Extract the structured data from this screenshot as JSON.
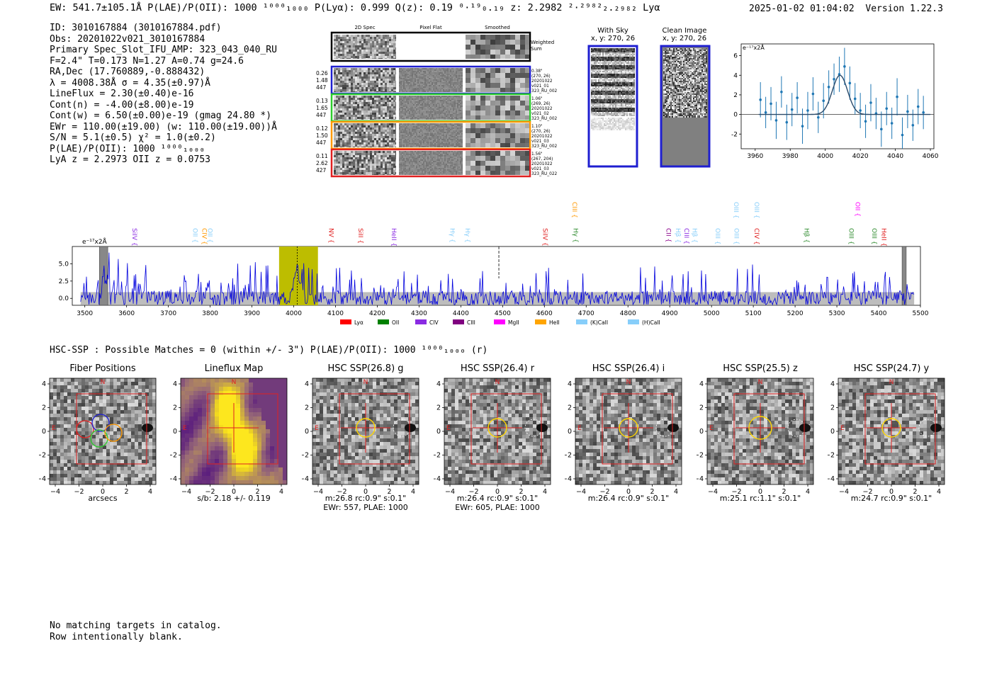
{
  "header": {
    "title_line": "EW: 541.7±105.1Å  P(LAE)/P(OII): 1000 ¹⁰⁰⁰₁₀₀₀  P(Lyα): 0.999  Q(z): 0.19 ⁰·¹⁹₀.₁₉  z: 2.2982 ²·²⁹⁸²₂.₂₉₈₂ Lyα",
    "timestamp": "2025-01-02 01:04:02",
    "version": "Version 1.22.3"
  },
  "info": {
    "lines": [
      "ID: 3010167884 (3010167884.pdf)",
      "Obs: 20201022v021_3010167884",
      "Primary Spec_Slot_IFU_AMP: 323_043_040_RU",
      "F=2.4\"  T=0.173  N=1.27  A=0.74  g=24.6",
      "RA,Dec (17.760889,-0.888432)",
      "λ = 4008.38Å  σ = 4.35(±0.97)Å",
      "LineFlux = 2.30(±0.40)e-16",
      "Cont(n) = -4.00(±8.00)e-19",
      "Cont(w) = 6.50(±0.00)e-19 (gmag 24.80 *)",
      "EWr = 110.00(±19.00) (w: 110.00(±19.00))Å",
      "S/N = 5.1(±0.5)  χ² = 1.0(±0.2)",
      "P(LAE)/P(OII): 1000 ¹⁰⁰⁰₁₀₀₀",
      "LyA z = 2.2973  OII z = 0.0753"
    ]
  },
  "fiber_strips": {
    "col_headers": [
      "2D Spec",
      "Pixel Flat",
      "Smoothed"
    ],
    "weighted_sum_label": "Weighted Sum",
    "rows": [
      {
        "left": [
          "0.26",
          "1.48",
          "447"
        ],
        "right": [
          "0.38\"",
          "(270, 26)",
          "20201022",
          "v021_01",
          "323_RU_002"
        ],
        "color": "#1f1fd0"
      },
      {
        "left": [
          "0.13",
          "1.65",
          "447"
        ],
        "right": [
          "1.06\"",
          "(269, 26)",
          "20201022",
          "v021_02",
          "323_RU_002"
        ],
        "color": "#2ecc2e"
      },
      {
        "left": [
          "0.12",
          "1.50",
          "447"
        ],
        "right": [
          "1.10\"",
          "(270, 26)",
          "20201022",
          "v021_03",
          "323_RU_002"
        ],
        "color": "#ff9900"
      },
      {
        "left": [
          "0.11",
          "2.62",
          "427"
        ],
        "right": [
          "1.56\"",
          "(267, 204)",
          "20201022",
          "v021_03",
          "323_RU_022"
        ],
        "color": "#e02020"
      }
    ]
  },
  "sky_panels": {
    "with_sky": {
      "title": "With Sky",
      "coords": "x, y: 270, 26"
    },
    "clean": {
      "title": "Clean Image",
      "coords": "x, y: 270, 26"
    }
  },
  "zoom_fit": {
    "unit_label": "e⁻¹⁷x2Å",
    "chart_data": {
      "type": "scatter",
      "x": [
        3963,
        3966,
        3969,
        3972,
        3975,
        3978,
        3981,
        3984,
        3987,
        3990,
        3993,
        3996,
        3999,
        4002,
        4005,
        4008,
        4011,
        4014,
        4017,
        4020,
        4023,
        4026,
        4029,
        4032,
        4035,
        4038,
        4041,
        4044,
        4047,
        4050,
        4053,
        4056
      ],
      "y": [
        1.5,
        0.2,
        1.1,
        -0.6,
        2.3,
        -0.8,
        0.5,
        1.7,
        -1.2,
        0.4,
        2.1,
        -0.3,
        1.4,
        2.8,
        3.6,
        4.1,
        4.9,
        3.2,
        1.6,
        0.4,
        -0.7,
        1.2,
        0.1,
        -1.5,
        0.6,
        -0.9,
        1.8,
        -2.1,
        0.3,
        -1.1,
        0.8,
        0.2
      ],
      "yerr": [
        1.8,
        1.6,
        1.7,
        1.9,
        1.6,
        1.8,
        1.7,
        1.6,
        1.8,
        1.9,
        1.7,
        1.6,
        1.8,
        1.7,
        1.6,
        1.8,
        1.9,
        1.7,
        1.6,
        1.8,
        1.7,
        1.9,
        1.6,
        1.8,
        1.7,
        1.6,
        1.9,
        1.8,
        1.7,
        1.6,
        1.8,
        1.7
      ],
      "fit": {
        "center": 4008.38,
        "sigma": 4.35,
        "amplitude": 4.0
      },
      "xlim": [
        3952,
        4062
      ],
      "ylim": [
        -3.5,
        7.2
      ],
      "xticks": [
        3960,
        3980,
        4000,
        4020,
        4040,
        4060
      ],
      "yticks": [
        -2,
        0,
        2,
        4,
        6
      ]
    }
  },
  "full_spectrum": {
    "unit_label": "e⁻¹⁷x2Å",
    "chart_data": {
      "type": "line",
      "xlim": [
        3470,
        5500
      ],
      "ylim": [
        -1.0,
        7.5
      ],
      "xticks": [
        3500,
        3600,
        3700,
        3800,
        3900,
        4000,
        4100,
        4200,
        4300,
        4400,
        4500,
        4600,
        4700,
        4800,
        4900,
        5000,
        5100,
        5200,
        5300,
        5400,
        5500
      ],
      "yticks": [
        0.0,
        2.5,
        5.0
      ],
      "highlight_range": [
        3965,
        4058
      ],
      "line_center": 4008.38,
      "reference_line": 4491,
      "masked_ranges": [
        [
          3535,
          3555
        ],
        [
          5456,
          5466
        ]
      ],
      "noise_level": 0.9,
      "lines": [
        {
          "name": "SiIV",
          "wave": 3619,
          "color": "#8a2be2",
          "row": 1
        },
        {
          "name": "OII",
          "wave": 3764,
          "color": "#87cefa",
          "row": 1
        },
        {
          "name": "CIV",
          "wave": 3786,
          "color": "#ff9900",
          "row": 1
        },
        {
          "name": "OII",
          "wave": 3800,
          "color": "#87cefa",
          "row": 1
        },
        {
          "name": "NV",
          "wave": 4090,
          "color": "#e02020",
          "row": 1
        },
        {
          "name": "SiII",
          "wave": 4160,
          "color": "#e02020",
          "row": 1
        },
        {
          "name": "HeII",
          "wave": 4240,
          "color": "#8a2be2",
          "row": 1
        },
        {
          "name": "Hγ",
          "wave": 4380,
          "color": "#87cefa",
          "row": 1
        },
        {
          "name": "Hγ",
          "wave": 4416,
          "color": "#87cefa",
          "row": 1
        },
        {
          "name": "SiIV",
          "wave": 4602,
          "color": "#e02020",
          "row": 1
        },
        {
          "name": "CIII",
          "wave": 4672,
          "color": "#ff9900",
          "row": 2
        },
        {
          "name": "Hγ",
          "wave": 4675,
          "color": "#2e8b2e",
          "row": 1
        },
        {
          "name": "CII",
          "wave": 4897,
          "color": "#8b008b",
          "row": 1
        },
        {
          "name": "Hβ",
          "wave": 4920,
          "color": "#87cefa",
          "row": 1
        },
        {
          "name": "CIII",
          "wave": 4940,
          "color": "#8a2be2",
          "row": 1
        },
        {
          "name": "Hβ",
          "wave": 4960,
          "color": "#87cefa",
          "row": 1
        },
        {
          "name": "OIII",
          "wave": 5015,
          "color": "#87cefa",
          "row": 1
        },
        {
          "name": "OIII",
          "wave": 5060,
          "color": "#87cefa",
          "row": 1
        },
        {
          "name": "OIII",
          "wave": 5059,
          "color": "#87cefa",
          "row": 2
        },
        {
          "name": "OIII",
          "wave": 5108,
          "color": "#87cefa",
          "row": 2
        },
        {
          "name": "CIV",
          "wave": 5108,
          "color": "#e02020",
          "row": 1
        },
        {
          "name": "Hβ",
          "wave": 5228,
          "color": "#2e8b2e",
          "row": 1
        },
        {
          "name": "OIII",
          "wave": 5335,
          "color": "#2e8b2e",
          "row": 1
        },
        {
          "name": "OII",
          "wave": 5350,
          "color": "#ff00ff",
          "row": 2
        },
        {
          "name": "OIII",
          "wave": 5390,
          "color": "#2e8b2e",
          "row": 1
        },
        {
          "name": "HeII",
          "wave": 5413,
          "color": "#e02020",
          "row": 1
        }
      ],
      "legend": [
        {
          "name": "Lyα",
          "color": "#ff0000"
        },
        {
          "name": "OII",
          "color": "#008000"
        },
        {
          "name": "CIV",
          "color": "#8a2be2"
        },
        {
          "name": "CIII",
          "color": "#800080"
        },
        {
          "name": "MgII",
          "color": "#ff00ff"
        },
        {
          "name": "HeII",
          "color": "#ffa500"
        },
        {
          "name": "(K)CaII",
          "color": "#87cefa"
        },
        {
          "name": "(H)CaII",
          "color": "#87cefa"
        }
      ]
    }
  },
  "hsc": {
    "header": "HSC-SSP : Possible Matches = 0 (within +/- 3\")  P(LAE)/P(OII): 1000 ¹⁰⁰⁰₁₀₀₀ (r)",
    "ticks": [
      "−4",
      "−2",
      "0",
      "2",
      "4"
    ],
    "panels": [
      {
        "title": "Fiber Positions",
        "caption": [
          "arcsecs"
        ],
        "kind": "fiber"
      },
      {
        "title": "Lineflux Map",
        "caption": [
          "s/b: 2.18 +/- 0.119"
        ],
        "kind": "lineflux"
      },
      {
        "title": "HSC SSP(26.8) g",
        "caption": [
          "m:26.8 rc:0.9\"  s:0.1\"",
          "EWr: 557, PLAE: 1000"
        ],
        "kind": "hsc"
      },
      {
        "title": "HSC SSP(26.4) r",
        "caption": [
          "m:26.4 rc:0.9\"  s:0.1\"",
          "EWr: 605, PLAE: 1000"
        ],
        "kind": "hsc"
      },
      {
        "title": "HSC SSP(26.4) i",
        "caption": [
          "m:26.4 rc:0.9\"  s:0.1\""
        ],
        "kind": "hsc"
      },
      {
        "title": "HSC SSP(25.5) z",
        "caption": [
          "m:25.1 rc:1.1\"  s:0.1\""
        ],
        "kind": "hsc"
      },
      {
        "title": "HSC SSP(24.7) y",
        "caption": [
          "m:24.7 rc:0.9\"  s:0.1\""
        ],
        "kind": "hsc"
      }
    ],
    "compass_n": "N",
    "compass_e": "E"
  },
  "footer": {
    "lines": [
      "No matching targets in catalog.",
      "Row intentionally blank."
    ]
  }
}
